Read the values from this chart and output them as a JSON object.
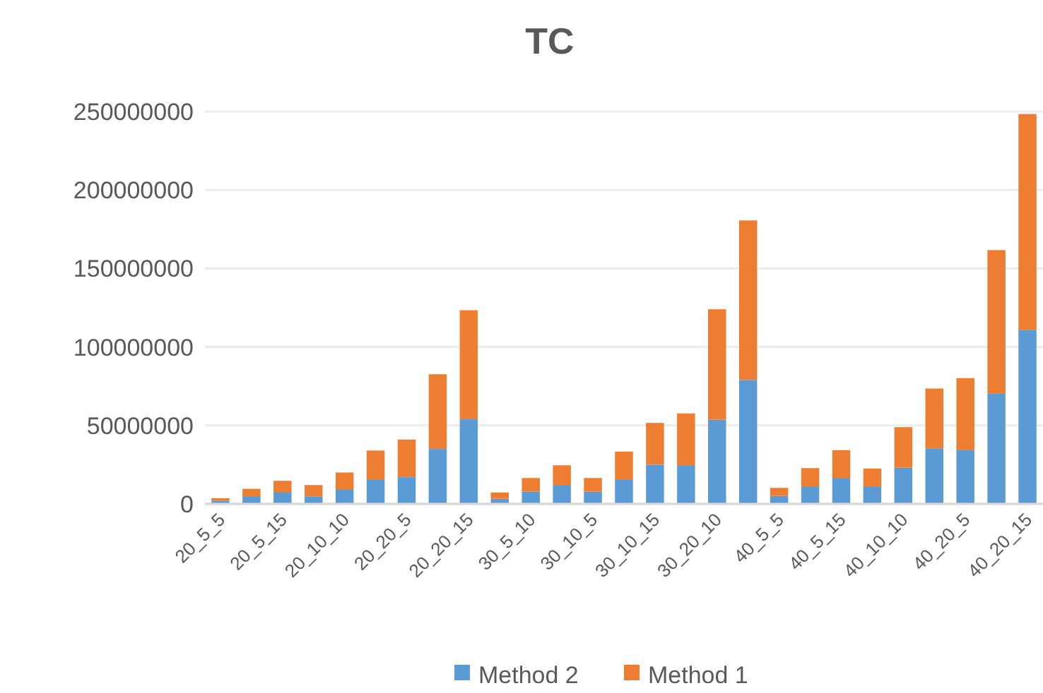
{
  "chart_data": {
    "type": "bar",
    "title": "TC",
    "stacked": true,
    "grid": "y",
    "legend": "bottom",
    "categories": [
      "20_5_5",
      null,
      "20_5_15",
      null,
      "20_10_10",
      null,
      "20_20_5",
      null,
      "20_20_15",
      null,
      "30_5_10",
      null,
      "30_10_5",
      null,
      "30_10_15",
      null,
      "30_20_10",
      null,
      "40_5_5",
      null,
      "40_5_15",
      null,
      "40_10_10",
      null,
      "40_20_5",
      null,
      "40_20_15"
    ],
    "ylim": [
      0,
      250000000
    ],
    "yticks": [
      0,
      50000000,
      100000000,
      150000000,
      200000000,
      250000000
    ],
    "series": [
      {
        "name": "Method 2",
        "color": "#5b9bd5",
        "values": [
          2100000,
          4500000,
          7200000,
          4800000,
          9000000,
          15300000,
          17000000,
          35000000,
          54000000,
          3300000,
          7800000,
          11700000,
          7800000,
          15300000,
          25000000,
          24300000,
          53700000,
          79000000,
          5100000,
          10800000,
          16200000,
          10800000,
          23100000,
          35400000,
          34200000,
          70500000,
          110700000
        ]
      },
      {
        "name": "Method 1",
        "color": "#ed7d31",
        "values": [
          1500000,
          5100000,
          7500000,
          7200000,
          11000000,
          18700000,
          24000000,
          47600000,
          69400000,
          3900000,
          8700000,
          12900000,
          8700000,
          18000000,
          26600000,
          33300000,
          70300000,
          101600000,
          5100000,
          12000000,
          18000000,
          11700000,
          25800000,
          38100000,
          45900000,
          91200000,
          137700000
        ]
      }
    ]
  }
}
